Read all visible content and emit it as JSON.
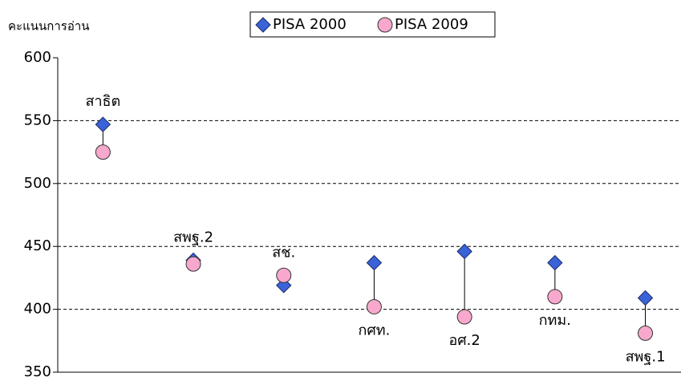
{
  "chart_data": {
    "type": "dotplot",
    "y_label": "คะแนนการอ่าน",
    "categories": [
      "สาธิต",
      "สพฐ.2",
      "สช.",
      "กศท.",
      "อศ.2",
      "กทม.",
      "สพฐ.1"
    ],
    "series": [
      {
        "name": "PISA 2000",
        "color": "#3b63d8",
        "marker": "diamond",
        "values": [
          547,
          439,
          419,
          437,
          446,
          437,
          409
        ]
      },
      {
        "name": "PISA 2009",
        "color": "#f7a8cc",
        "marker": "circle",
        "values": [
          525,
          436,
          427,
          402,
          394,
          410,
          381
        ]
      }
    ],
    "ylim": [
      350,
      600
    ],
    "yticks": [
      350,
      400,
      450,
      500,
      550,
      600
    ],
    "grid": true,
    "legend": "top"
  }
}
